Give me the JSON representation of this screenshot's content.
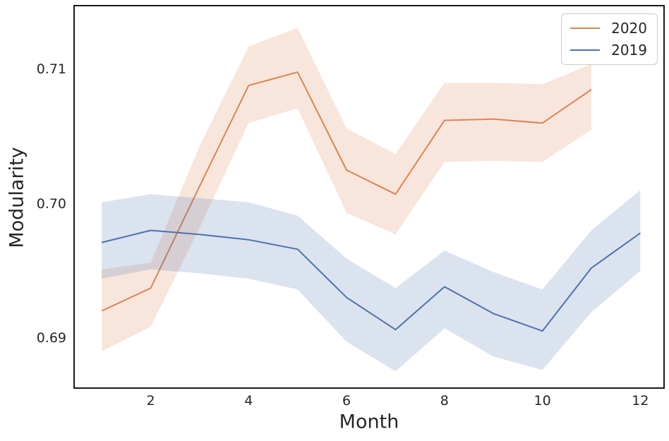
{
  "figure": {
    "background": "#ffffff",
    "axis_color": "#1a1a1a",
    "tick_color": "#262626"
  },
  "chart_data": {
    "type": "line",
    "title": "",
    "xlabel": "Month",
    "ylabel": "Modularity",
    "xlim": [
      0.45,
      12.47
    ],
    "ylim": [
      0.6863,
      0.7147
    ],
    "grid": false,
    "legend_position": "upper right",
    "band_opacity": 0.2,
    "line_width": 2,
    "xticks": [
      {
        "v": 2,
        "label": "2"
      },
      {
        "v": 4,
        "label": "4"
      },
      {
        "v": 6,
        "label": "6"
      },
      {
        "v": 8,
        "label": "8"
      },
      {
        "v": 10,
        "label": "10"
      },
      {
        "v": 12,
        "label": "12"
      }
    ],
    "yticks": [
      {
        "v": 0.69,
        "label": "0.69"
      },
      {
        "v": 0.7,
        "label": "0.70"
      },
      {
        "v": 0.71,
        "label": "0.71"
      }
    ],
    "series": [
      {
        "name": "2020",
        "color": "#dd8452",
        "x": [
          1,
          2,
          3,
          4,
          5,
          6,
          7,
          8,
          9,
          10,
          11
        ],
        "values": [
          0.692,
          0.6937,
          0.7013,
          0.7088,
          0.7098,
          0.7025,
          0.7007,
          0.7062,
          0.7063,
          0.706,
          0.7085
        ],
        "lower": [
          0.689,
          0.6908,
          0.6982,
          0.706,
          0.7071,
          0.6993,
          0.6977,
          0.7031,
          0.7032,
          0.7031,
          0.7055
        ],
        "upper": [
          0.6951,
          0.6956,
          0.7043,
          0.7117,
          0.7131,
          0.7056,
          0.7037,
          0.709,
          0.709,
          0.7089,
          0.7104
        ]
      },
      {
        "name": "2019",
        "color": "#4c72b0",
        "x": [
          1,
          2,
          3,
          4,
          5,
          6,
          7,
          8,
          9,
          10,
          11,
          12
        ],
        "values": [
          0.6971,
          0.698,
          0.6977,
          0.6973,
          0.6966,
          0.693,
          0.6906,
          0.6938,
          0.6918,
          0.6905,
          0.6952,
          0.6978
        ],
        "lower": [
          0.6944,
          0.6951,
          0.6948,
          0.6944,
          0.6936,
          0.6897,
          0.6875,
          0.6907,
          0.6886,
          0.6876,
          0.6919,
          0.695
        ],
        "upper": [
          0.7001,
          0.7007,
          0.7004,
          0.7001,
          0.6991,
          0.6959,
          0.6937,
          0.6965,
          0.6949,
          0.6936,
          0.698,
          0.701
        ]
      }
    ]
  }
}
